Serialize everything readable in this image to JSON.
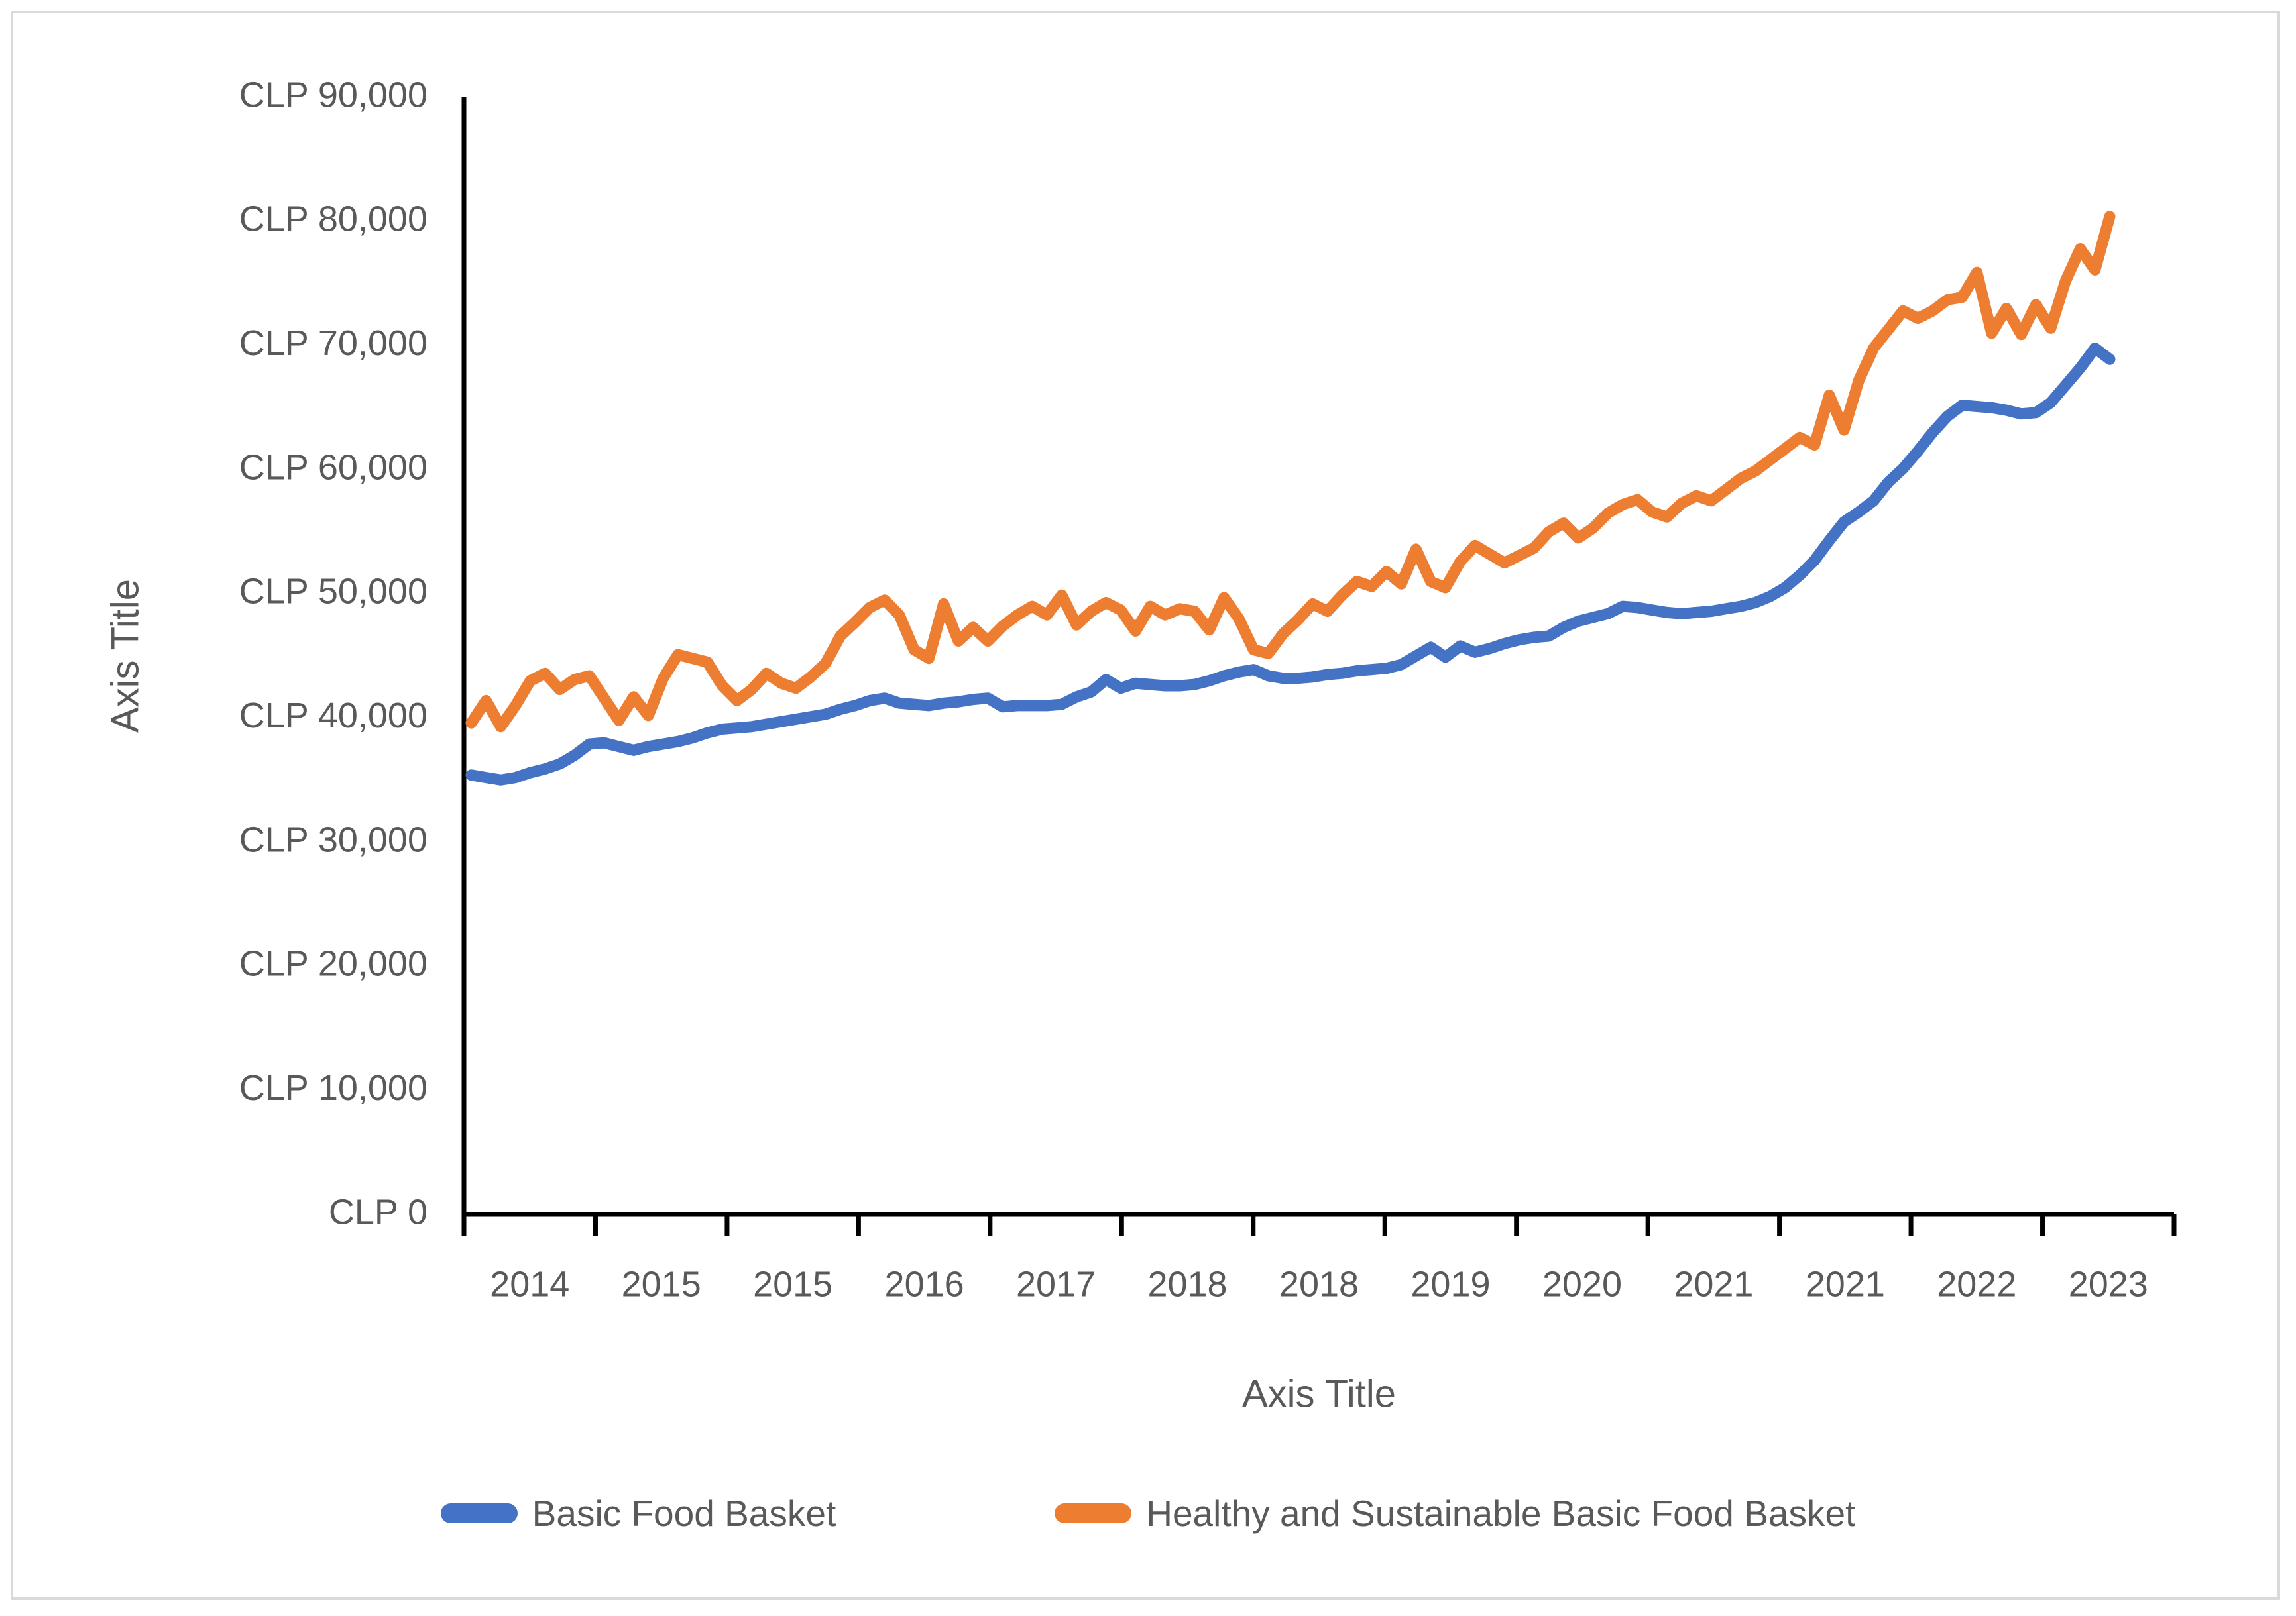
{
  "chart_data": {
    "type": "line",
    "title": "",
    "x_axis_title": "Axis Title",
    "y_axis_title": "Axis Title",
    "ylim": [
      0,
      90000
    ],
    "y_tick_labels": [
      "CLP 0",
      "CLP 10,000",
      "CLP 20,000",
      "CLP 30,000",
      "CLP 40,000",
      "CLP 50,000",
      "CLP 60,000",
      "CLP 70,000",
      "CLP 80,000",
      "CLP 90,000"
    ],
    "x_tick_labels": [
      "2014",
      "2015",
      "2015",
      "2016",
      "2017",
      "2018",
      "2018",
      "2019",
      "2020",
      "2021",
      "2021",
      "2022",
      "2023"
    ],
    "grid": "off",
    "legend_position": "bottom",
    "series": [
      {
        "name": "Basic Food Basket",
        "color": "#4472C4",
        "values": [
          35400,
          35200,
          35000,
          35200,
          35600,
          35900,
          36300,
          37000,
          37900,
          38000,
          37700,
          37400,
          37700,
          37900,
          38100,
          38400,
          38800,
          39100,
          39200,
          39300,
          39500,
          39700,
          39900,
          40100,
          40300,
          40700,
          41000,
          41400,
          41600,
          41200,
          41100,
          41000,
          41200,
          41300,
          41500,
          41600,
          40900,
          41000,
          41000,
          41000,
          41100,
          41700,
          42100,
          43100,
          42400,
          42800,
          42700,
          42600,
          42600,
          42700,
          43000,
          43400,
          43700,
          43900,
          43400,
          43200,
          43200,
          43300,
          43500,
          43600,
          43800,
          43900,
          44000,
          44300,
          45000,
          45700,
          44900,
          45800,
          45300,
          45600,
          46000,
          46300,
          46500,
          46600,
          47300,
          47800,
          48100,
          48400,
          49000,
          48900,
          48700,
          48500,
          48400,
          48500,
          48600,
          48800,
          49000,
          49300,
          49800,
          50500,
          51500,
          52700,
          54300,
          55800,
          56600,
          57500,
          59000,
          60100,
          61500,
          63000,
          64300,
          65200,
          65100,
          65000,
          64800,
          64500,
          64600,
          65400,
          66800,
          68200,
          69800,
          68900
        ]
      },
      {
        "name": "Healthy and Sustainable Basic Food Basket",
        "color": "#ED7D31",
        "values": [
          39600,
          41400,
          39300,
          41000,
          43000,
          43600,
          42300,
          43100,
          43400,
          41600,
          39800,
          41700,
          40200,
          43200,
          45100,
          44800,
          44500,
          42600,
          41400,
          42300,
          43600,
          42800,
          42400,
          43300,
          44400,
          46600,
          47700,
          48900,
          49500,
          48300,
          45500,
          44800,
          49200,
          46200,
          47300,
          46200,
          47400,
          48300,
          49000,
          48300,
          49900,
          47500,
          48600,
          49300,
          48700,
          47000,
          49000,
          48300,
          48800,
          48600,
          47100,
          49700,
          48000,
          45500,
          45200,
          46800,
          47900,
          49200,
          48600,
          49900,
          51000,
          50600,
          51800,
          50800,
          53600,
          51000,
          50500,
          52600,
          53900,
          53200,
          52500,
          53100,
          53700,
          55000,
          55700,
          54500,
          55300,
          56500,
          57200,
          57600,
          56600,
          56200,
          57300,
          57900,
          57500,
          58400,
          59300,
          59900,
          60800,
          61700,
          62600,
          62000,
          66000,
          63200,
          67200,
          69800,
          71300,
          72800,
          72200,
          72800,
          73700,
          73900,
          75900,
          71000,
          73000,
          70900,
          73300,
          71400,
          75200,
          77800,
          76100,
          80400
        ]
      }
    ]
  },
  "legend": {
    "item1": "Basic Food Basket",
    "item2": "Healthy and Sustainable Basic Food Basket"
  },
  "layout_colors": {
    "axis_line": "#000000",
    "label_text": "#595959",
    "frame_border": "#D9D9D9"
  }
}
